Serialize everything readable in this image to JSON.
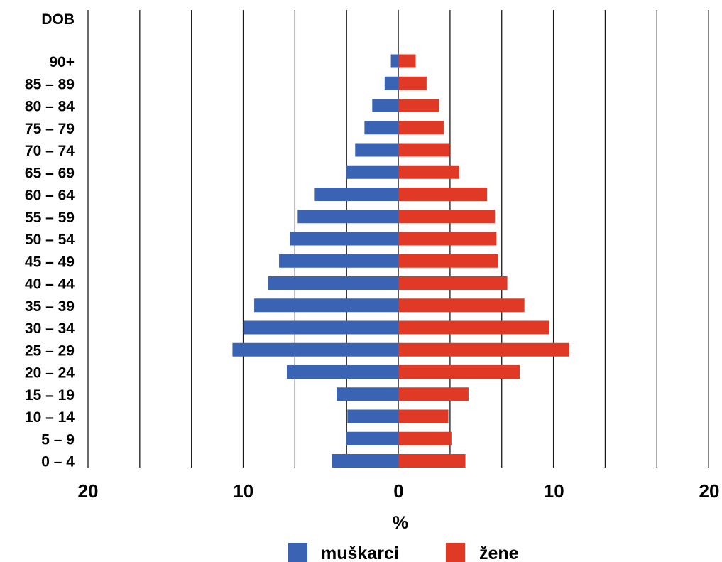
{
  "chart_data": {
    "type": "bar",
    "orientation": "horizontal",
    "layout": "population-pyramid",
    "age_axis_label": "DOB",
    "xlabel": "%",
    "xlim": [
      -20,
      20
    ],
    "xticks": [
      {
        "value": -20,
        "label": "20"
      },
      {
        "value": -10,
        "label": "10"
      },
      {
        "value": 0,
        "label": "0"
      },
      {
        "value": 10,
        "label": "10"
      },
      {
        "value": 20,
        "label": "20"
      }
    ],
    "grid_step": 3.33,
    "categories": [
      "90+",
      "85 – 89",
      "80 – 84",
      "75 – 79",
      "70 – 74",
      "65 – 69",
      "60 – 64",
      "55 – 59",
      "50 – 54",
      "45 – 49",
      "40 – 44",
      "35 – 39",
      "30 – 34",
      "25 – 29",
      "20 – 24",
      "15 – 19",
      "10 – 14",
      "5 – 9",
      "0 – 4"
    ],
    "series": [
      {
        "name": "muškarci",
        "side": "left",
        "color": "#3a63b4",
        "values": [
          0.5,
          0.9,
          1.7,
          2.2,
          2.8,
          3.4,
          5.4,
          6.5,
          7.0,
          7.7,
          8.4,
          9.3,
          10.0,
          10.7,
          7.2,
          4.0,
          3.3,
          3.4,
          4.3
        ]
      },
      {
        "name": "žene",
        "side": "right",
        "color": "#e03a26",
        "values": [
          1.1,
          1.8,
          2.6,
          2.9,
          3.3,
          3.9,
          5.7,
          6.2,
          6.3,
          6.4,
          7.0,
          8.1,
          9.7,
          11.0,
          7.8,
          4.5,
          3.2,
          3.4,
          4.3
        ]
      }
    ],
    "legend": {
      "position": "bottom-center"
    }
  }
}
